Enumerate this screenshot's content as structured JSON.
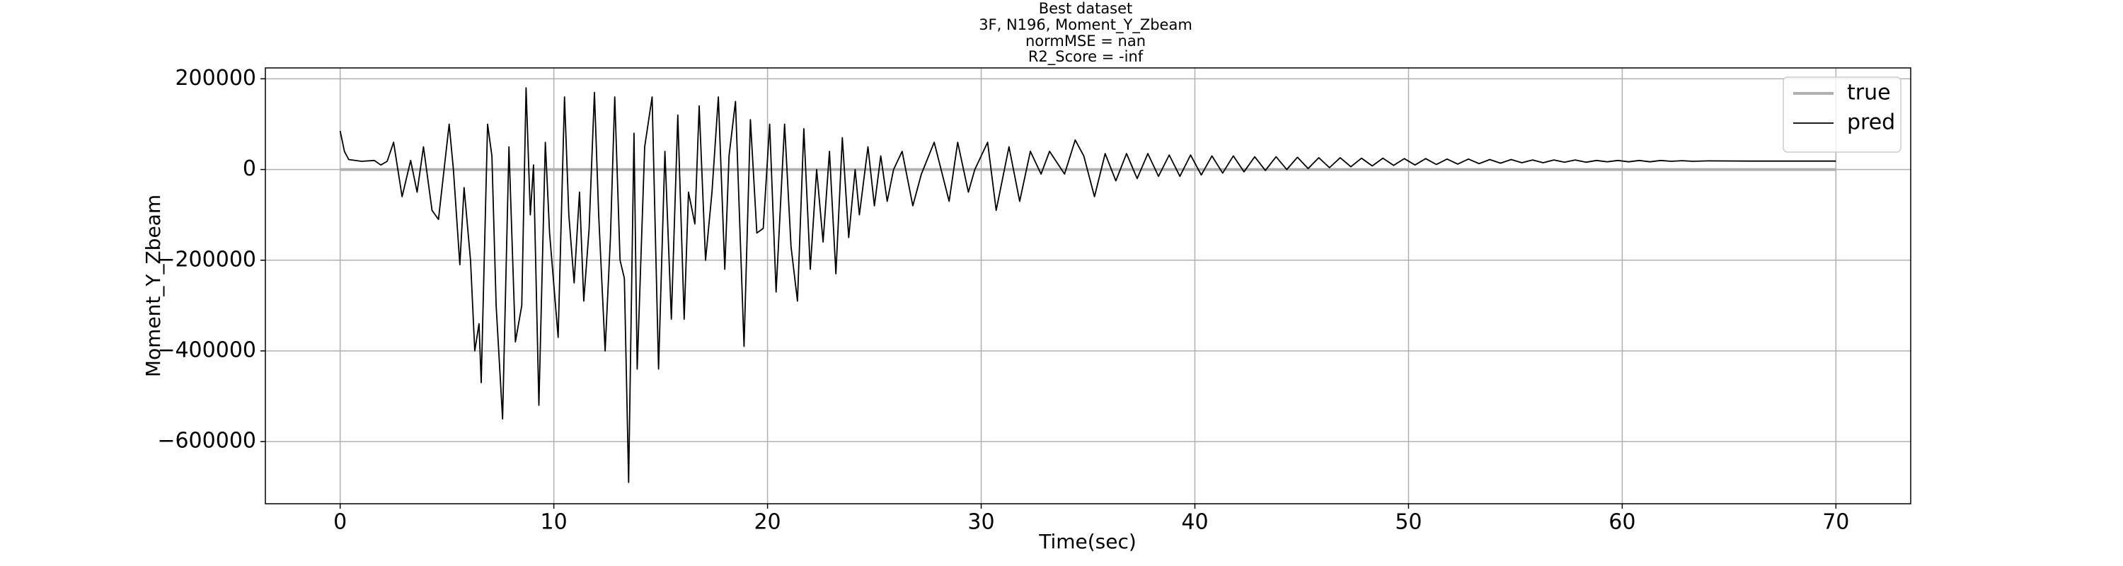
{
  "chart_data": {
    "type": "line",
    "title": [
      "Best dataset",
      "3F, N196, Moment_Y_Zbeam",
      "normMSE = nan",
      "R2_Score = -inf"
    ],
    "xlabel": "Time(sec)",
    "ylabel": "Moment_Y_Zbeam",
    "xlim": [
      -3.5,
      73.5
    ],
    "ylim": [
      -737000,
      224000
    ],
    "xticks": [
      0,
      10,
      20,
      30,
      40,
      50,
      60,
      70
    ],
    "yticks": [
      {
        "value": -600000,
        "label": "−600000"
      },
      {
        "value": -400000,
        "label": "−400000"
      },
      {
        "value": -200000,
        "label": "−200000"
      },
      0,
      200000
    ],
    "grid": true,
    "legend": "upper right",
    "series": [
      {
        "name": "true",
        "color": "#b0b0b0",
        "x": [
          0,
          70
        ],
        "values": [
          0,
          0
        ]
      },
      {
        "name": "pred",
        "color": "#000000",
        "x": [
          0.0,
          0.2,
          0.4,
          1.0,
          1.6,
          1.9,
          2.2,
          2.5,
          2.9,
          3.3,
          3.6,
          3.9,
          4.3,
          4.6,
          5.1,
          5.3,
          5.6,
          5.8,
          6.1,
          6.3,
          6.5,
          6.6,
          6.9,
          7.1,
          7.3,
          7.6,
          7.9,
          8.2,
          8.5,
          8.7,
          8.9,
          9.05,
          9.3,
          9.6,
          9.8,
          10.2,
          10.5,
          10.7,
          10.95,
          11.2,
          11.4,
          11.65,
          11.9,
          12.1,
          12.4,
          12.65,
          12.85,
          13.1,
          13.3,
          13.5,
          13.75,
          13.9,
          14.25,
          14.6,
          14.9,
          15.2,
          15.5,
          15.8,
          16.1,
          16.3,
          16.6,
          16.8,
          17.1,
          17.4,
          17.7,
          18.0,
          18.2,
          18.5,
          18.9,
          19.2,
          19.5,
          19.8,
          20.1,
          20.4,
          20.8,
          21.1,
          21.4,
          21.7,
          22.0,
          22.3,
          22.6,
          22.9,
          23.2,
          23.5,
          23.8,
          24.1,
          24.3,
          24.7,
          25.0,
          25.3,
          25.6,
          25.9,
          26.3,
          26.8,
          27.2,
          27.8,
          28.5,
          28.9,
          29.4,
          29.7,
          30.3,
          30.7,
          31.3,
          31.8,
          32.3,
          32.8,
          33.2,
          33.9,
          34.4,
          34.8,
          35.3,
          35.8,
          36.3,
          36.8,
          37.3,
          37.8,
          38.3,
          38.8,
          39.3,
          39.8,
          40.3,
          40.8,
          41.3,
          41.8,
          42.3,
          42.8,
          43.3,
          43.8,
          44.3,
          44.8,
          45.3,
          45.8,
          46.3,
          46.8,
          47.3,
          47.8,
          48.3,
          48.8,
          49.3,
          49.8,
          50.3,
          50.8,
          51.3,
          51.8,
          52.3,
          52.8,
          53.3,
          53.8,
          54.3,
          54.8,
          55.3,
          55.8,
          56.3,
          56.8,
          57.3,
          57.8,
          58.3,
          58.8,
          59.3,
          59.8,
          60.3,
          60.8,
          61.3,
          61.8,
          62.3,
          62.8,
          63.3,
          64,
          66,
          68,
          70
        ],
        "values": [
          85000,
          40000,
          22000,
          18000,
          20000,
          10000,
          18000,
          60000,
          -60000,
          20000,
          -50000,
          50000,
          -90000,
          -110000,
          100000,
          0,
          -210000,
          -40000,
          -200000,
          -400000,
          -340000,
          -470000,
          100000,
          30000,
          -300000,
          -550000,
          50000,
          -380000,
          -300000,
          180000,
          -100000,
          10000,
          -520000,
          60000,
          -140000,
          -370000,
          160000,
          -100000,
          -250000,
          -50000,
          -290000,
          -130000,
          170000,
          -100000,
          -400000,
          -150000,
          160000,
          -200000,
          -240000,
          -690000,
          80000,
          -440000,
          50000,
          160000,
          -440000,
          40000,
          -330000,
          120000,
          -330000,
          -50000,
          -120000,
          140000,
          -200000,
          -50000,
          160000,
          -220000,
          30000,
          150000,
          -390000,
          110000,
          -140000,
          -130000,
          100000,
          -270000,
          100000,
          -170000,
          -290000,
          90000,
          -220000,
          0,
          -160000,
          40000,
          -230000,
          70000,
          -150000,
          0,
          -100000,
          50000,
          -80000,
          30000,
          -70000,
          0,
          40000,
          -80000,
          -10000,
          60000,
          -70000,
          60000,
          -50000,
          0,
          60000,
          -90000,
          50000,
          -70000,
          40000,
          -10000,
          40000,
          -10000,
          65000,
          30000,
          -60000,
          35000,
          -25000,
          35000,
          -20000,
          35000,
          -15000,
          32000,
          -15000,
          32000,
          -12000,
          30000,
          -8000,
          30000,
          -5000,
          28000,
          -2000,
          28000,
          0,
          27000,
          2000,
          26000,
          4000,
          26000,
          6000,
          25000,
          8000,
          25000,
          9000,
          24000,
          10000,
          24000,
          11000,
          23000,
          12000,
          23000,
          13000,
          22000,
          14000,
          22000,
          15000,
          21000,
          15000,
          21000,
          16000,
          21000,
          16000,
          20000,
          17000,
          20000,
          17000,
          20000,
          17000,
          20000,
          18000,
          19500,
          18000,
          19000,
          18500,
          18500,
          18500
        ]
      }
    ]
  }
}
